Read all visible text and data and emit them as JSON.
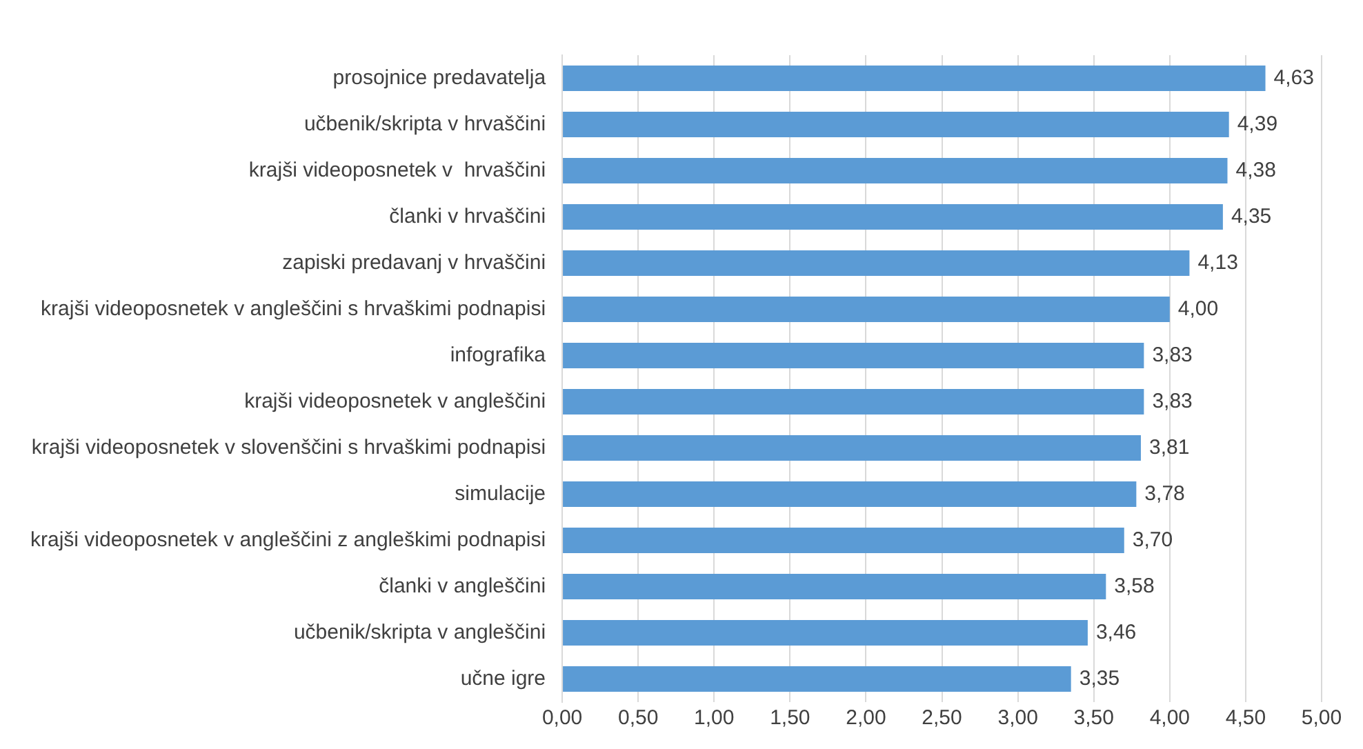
{
  "chart_data": {
    "type": "bar",
    "orientation": "horizontal",
    "categories": [
      "prosojnice predavatelja",
      "učbenik/skripta v hrvaščini",
      "krajši videoposnetek v  hrvaščini",
      "članki v hrvaščini",
      "zapiski predavanj v hrvaščini",
      "krajši videoposnetek v angleščini s hrvaškimi podnapisi",
      "infografika",
      "krajši videoposnetek v angleščini",
      "krajši videoposnetek v slovenščini s hrvaškimi podnapisi",
      "simulacije",
      "krajši videoposnetek v angleščini z angleškimi podnapisi",
      "članki v angleščini",
      "učbenik/skripta v angleščini",
      "učne igre"
    ],
    "values": [
      4.63,
      4.39,
      4.38,
      4.35,
      4.13,
      4.0,
      3.83,
      3.83,
      3.81,
      3.78,
      3.7,
      3.58,
      3.46,
      3.35
    ],
    "value_labels": [
      "4,63",
      "4,39",
      "4,38",
      "4,35",
      "4,13",
      "4,00",
      "3,83",
      "3,83",
      "3,81",
      "3,78",
      "3,70",
      "3,58",
      "3,46",
      "3,35"
    ],
    "color": "#5b9bd5",
    "xlim": [
      0,
      5
    ],
    "xticks": [
      {
        "value": 0,
        "label": "0,00"
      },
      {
        "value": 0.5,
        "label": "0,50"
      },
      {
        "value": 1,
        "label": "1,00"
      },
      {
        "value": 1.5,
        "label": "1,50"
      },
      {
        "value": 2,
        "label": "2,00"
      },
      {
        "value": 2.5,
        "label": "2,50"
      },
      {
        "value": 3,
        "label": "3,00"
      },
      {
        "value": 3.5,
        "label": "3,50"
      },
      {
        "value": 4,
        "label": "4,00"
      },
      {
        "value": 4.5,
        "label": "4,50"
      },
      {
        "value": 5,
        "label": "5,00"
      }
    ],
    "grid": "x",
    "legend": false
  }
}
